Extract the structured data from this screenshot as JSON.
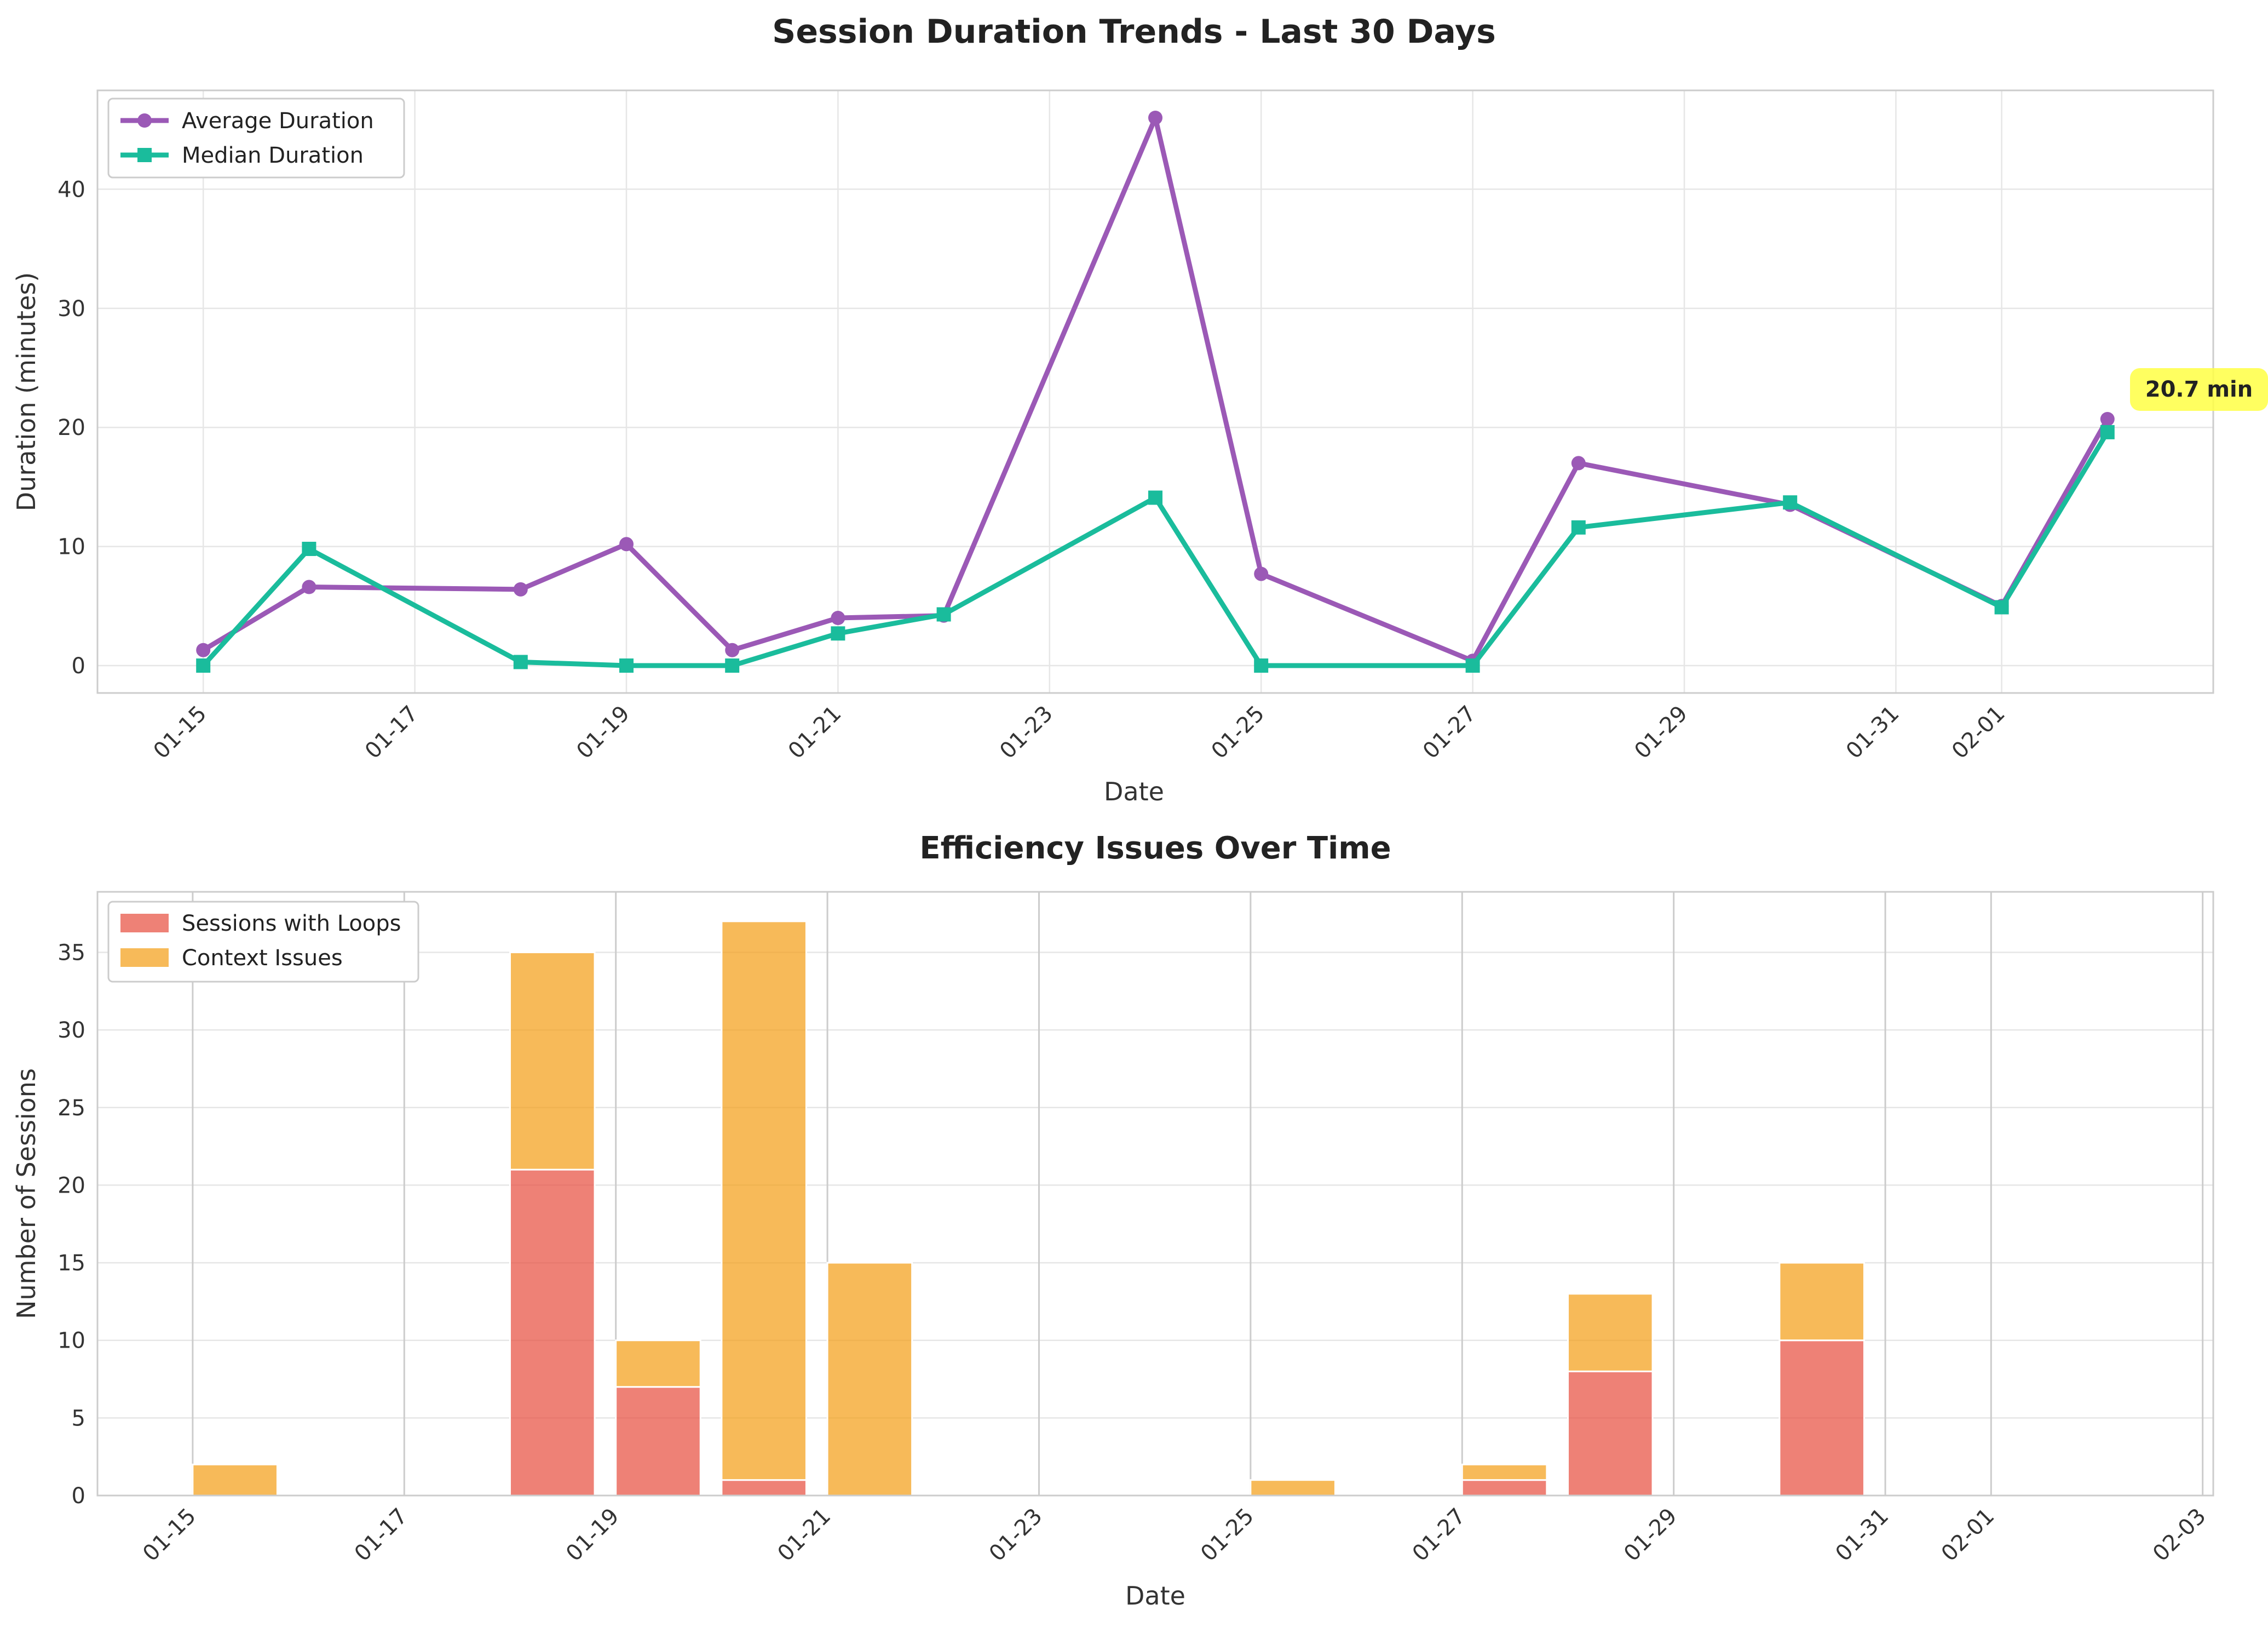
{
  "chart_data": [
    {
      "type": "line",
      "title": "Session Duration Trends - Last 30 Days",
      "xlabel": "Date",
      "ylabel": "Duration (minutes)",
      "xlim": [
        "2025-01-14",
        "2025-02-03"
      ],
      "ylim": [
        -2.3,
        48.3
      ],
      "yticks": [
        0,
        10,
        20,
        30,
        40
      ],
      "xticks": [
        {
          "date": "2025-01-15",
          "label": "01-15"
        },
        {
          "date": "2025-01-17",
          "label": "01-17"
        },
        {
          "date": "2025-01-19",
          "label": "01-19"
        },
        {
          "date": "2025-01-21",
          "label": "01-21"
        },
        {
          "date": "2025-01-23",
          "label": "01-23"
        },
        {
          "date": "2025-01-25",
          "label": "01-25"
        },
        {
          "date": "2025-01-27",
          "label": "01-27"
        },
        {
          "date": "2025-01-29",
          "label": "01-29"
        },
        {
          "date": "2025-01-31",
          "label": "01-31"
        },
        {
          "date": "2025-02-01",
          "label": "02-01"
        }
      ],
      "grid": true,
      "legend": "top-left",
      "series": [
        {
          "name": "Average Duration",
          "color": "#9b59b6",
          "marker": "circle",
          "x": [
            "2025-01-15",
            "2025-01-16",
            "2025-01-18",
            "2025-01-19",
            "2025-01-20",
            "2025-01-21",
            "2025-01-22",
            "2025-01-24",
            "2025-01-25",
            "2025-01-27",
            "2025-01-28",
            "2025-01-30",
            "2025-02-01",
            "2025-02-02"
          ],
          "y": [
            1.3,
            6.6,
            6.4,
            10.2,
            1.3,
            4.0,
            4.2,
            46.0,
            7.7,
            0.4,
            17.0,
            13.5,
            5.0,
            20.7
          ]
        },
        {
          "name": "Median Duration",
          "color": "#1abc9c",
          "marker": "square",
          "x": [
            "2025-01-15",
            "2025-01-16",
            "2025-01-18",
            "2025-01-19",
            "2025-01-20",
            "2025-01-21",
            "2025-01-22",
            "2025-01-24",
            "2025-01-25",
            "2025-01-27",
            "2025-01-28",
            "2025-01-30",
            "2025-02-01",
            "2025-02-02"
          ],
          "y": [
            0.0,
            9.8,
            0.3,
            0.0,
            0.0,
            2.7,
            4.3,
            14.1,
            0.0,
            0.0,
            11.6,
            13.7,
            4.9,
            19.6
          ]
        }
      ],
      "annotation": {
        "text": "20.7 min",
        "x": "2025-02-02",
        "y": 20.7,
        "bg": "#ffff44"
      }
    },
    {
      "type": "bar",
      "stacked": true,
      "title": "Efficiency Issues Over Time",
      "xlabel": "Date",
      "ylabel": "Number of Sessions",
      "xlim": [
        "2025-01-14.1",
        "2025-02-03.1"
      ],
      "ylim": [
        0,
        38.9
      ],
      "yticks": [
        0,
        5,
        10,
        15,
        20,
        25,
        30,
        35
      ],
      "xticks": [
        {
          "date": "2025-01-15",
          "label": "01-15"
        },
        {
          "date": "2025-01-17",
          "label": "01-17"
        },
        {
          "date": "2025-01-19",
          "label": "01-19"
        },
        {
          "date": "2025-01-21",
          "label": "01-21"
        },
        {
          "date": "2025-01-23",
          "label": "01-23"
        },
        {
          "date": "2025-01-25",
          "label": "01-25"
        },
        {
          "date": "2025-01-27",
          "label": "01-27"
        },
        {
          "date": "2025-01-29",
          "label": "01-29"
        },
        {
          "date": "2025-01-31",
          "label": "01-31"
        },
        {
          "date": "2025-02-01",
          "label": "02-01"
        },
        {
          "date": "2025-02-03",
          "label": "02-03"
        }
      ],
      "grid": true,
      "legend": "top-left",
      "x": [
        "2025-01-15",
        "2025-01-18",
        "2025-01-19",
        "2025-01-20",
        "2025-01-21",
        "2025-01-25",
        "2025-01-27",
        "2025-01-28",
        "2025-01-30"
      ],
      "series": [
        {
          "name": "Sessions with Loops",
          "color": "#e74c3c",
          "values": [
            0,
            21,
            7,
            1,
            0,
            0,
            1,
            8,
            10
          ]
        },
        {
          "name": "Context Issues",
          "color": "#f39c12",
          "values": [
            2,
            14,
            3,
            36,
            15,
            1,
            1,
            5,
            5
          ]
        }
      ]
    }
  ]
}
